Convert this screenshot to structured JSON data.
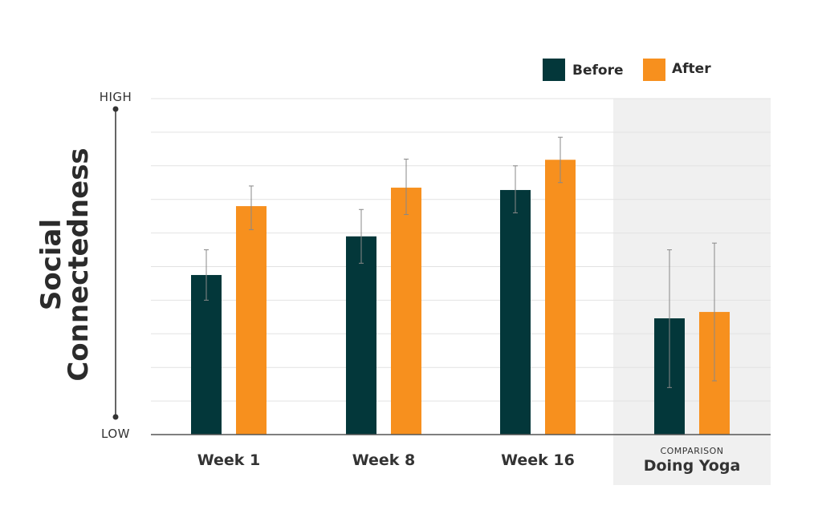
{
  "chart_data": {
    "type": "bar",
    "ylabel_lines": [
      "Social",
      "Connectedness"
    ],
    "y_high_label": "HIGH",
    "y_low_label": "LOW",
    "ylim": [
      0,
      10
    ],
    "grid": true,
    "legend_position": "top-right",
    "categories": [
      {
        "label": "Week 1",
        "superlabel": ""
      },
      {
        "label": "Week 8",
        "superlabel": ""
      },
      {
        "label": "Week 16",
        "superlabel": ""
      },
      {
        "label": "Doing Yoga",
        "superlabel": "COMPARISON"
      }
    ],
    "highlighted_category": "Doing Yoga",
    "series": [
      {
        "name": "Before",
        "color": "#03373a",
        "values": [
          4.75,
          5.9,
          7.28,
          3.46
        ],
        "err_low": [
          4.0,
          5.1,
          6.6,
          1.4
        ],
        "err_high": [
          5.5,
          6.7,
          8.0,
          5.5
        ]
      },
      {
        "name": "After",
        "color": "#f7901e",
        "values": [
          6.8,
          7.35,
          8.18,
          3.65
        ],
        "err_low": [
          6.1,
          6.55,
          7.5,
          1.6
        ],
        "err_high": [
          7.4,
          8.2,
          8.85,
          5.7
        ]
      }
    ]
  },
  "colors": {
    "axis": "#555555",
    "grid": "#e2e2e2",
    "highlight_band": "#f0f0f0",
    "error_bar": "#888888"
  }
}
